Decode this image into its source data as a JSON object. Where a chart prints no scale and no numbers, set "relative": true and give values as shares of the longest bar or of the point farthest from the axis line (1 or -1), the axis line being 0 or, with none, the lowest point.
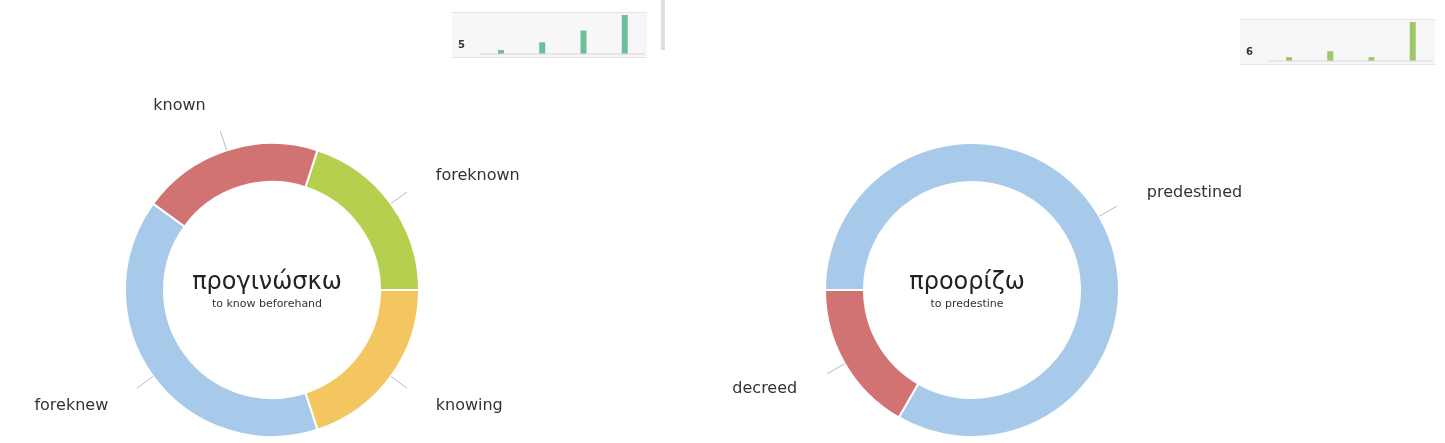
{
  "chart_data": [
    {
      "type": "bar",
      "relative": true,
      "annotations": [
        "5"
      ],
      "categories": [
        null,
        null,
        null,
        null
      ],
      "values": [
        0.1,
        0.3,
        0.6,
        1
      ],
      "color": "#6cbf9a"
    },
    {
      "type": "donut",
      "title": "προγινώσκω",
      "subtitle": "to know beforehand",
      "legend": false,
      "categories": [
        "foreknown",
        "knowing",
        "foreknew",
        "known"
      ],
      "values": [
        20,
        20,
        40,
        20
      ],
      "colors": [
        "#b5cf4f",
        "#f3c65f",
        "#a7c9ea",
        "#d07372"
      ]
    },
    {
      "type": "bar",
      "relative": true,
      "annotations": [
        "6"
      ],
      "categories": [
        null,
        null,
        null,
        null
      ],
      "values": [
        0.1,
        0.25,
        0.1,
        1
      ],
      "color": "#9cc86a"
    },
    {
      "type": "donut",
      "title": "προορίζω",
      "subtitle": "to predestine",
      "legend": false,
      "categories": [
        "predestined",
        "decreed"
      ],
      "values": [
        83.3,
        16.7
      ],
      "colors": [
        "#a7c9ea",
        "#d07372"
      ]
    }
  ]
}
